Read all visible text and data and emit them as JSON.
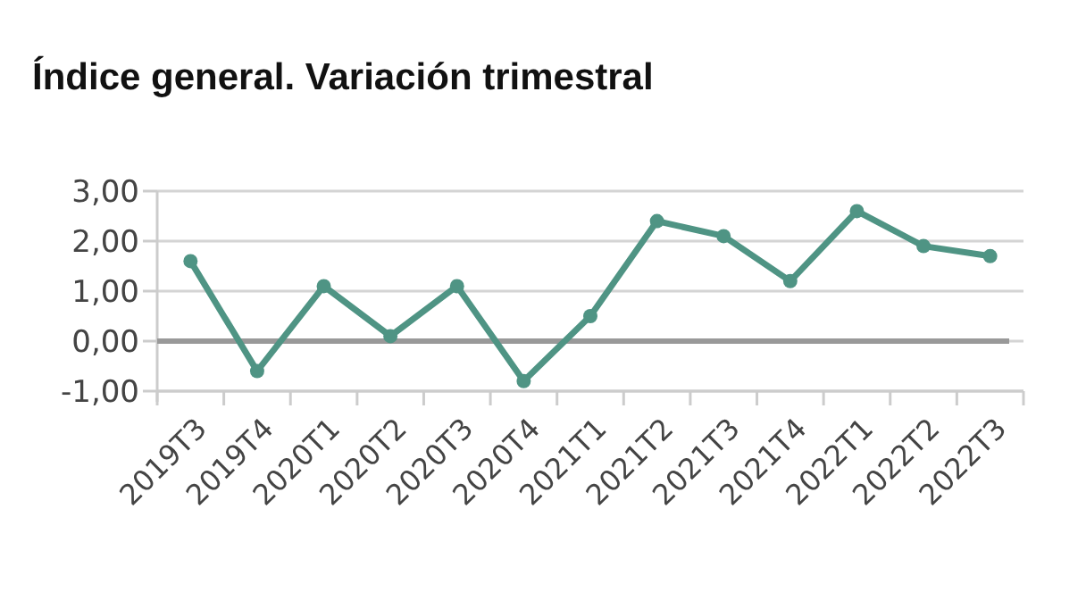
{
  "chart_data": {
    "type": "line",
    "title": "Índice general. Variación trimestral",
    "categories": [
      "2019T3",
      "2019T4",
      "2020T1",
      "2020T2",
      "2020T3",
      "2020T4",
      "2021T1",
      "2021T2",
      "2021T3",
      "2021T4",
      "2022T1",
      "2022T2",
      "2022T3"
    ],
    "series": [
      {
        "color": "#4f9484",
        "values": [
          1.6,
          -0.6,
          1.1,
          0.1,
          1.1,
          -0.8,
          0.5,
          2.4,
          2.1,
          1.2,
          2.6,
          1.9,
          1.7
        ]
      }
    ],
    "ylim": [
      -1,
      3
    ],
    "yticks": [
      {
        "value": -1,
        "label": "-1,00"
      },
      {
        "value": 0,
        "label": "0,00"
      },
      {
        "value": 1,
        "label": "1,00"
      },
      {
        "value": 2,
        "label": "2,00"
      },
      {
        "value": 3,
        "label": "3,00"
      }
    ],
    "grid": "y",
    "marker": "circle",
    "line_style": "solid",
    "ref_lines": [
      {
        "axis": "y",
        "value": 0,
        "color": "#999999"
      }
    ]
  }
}
